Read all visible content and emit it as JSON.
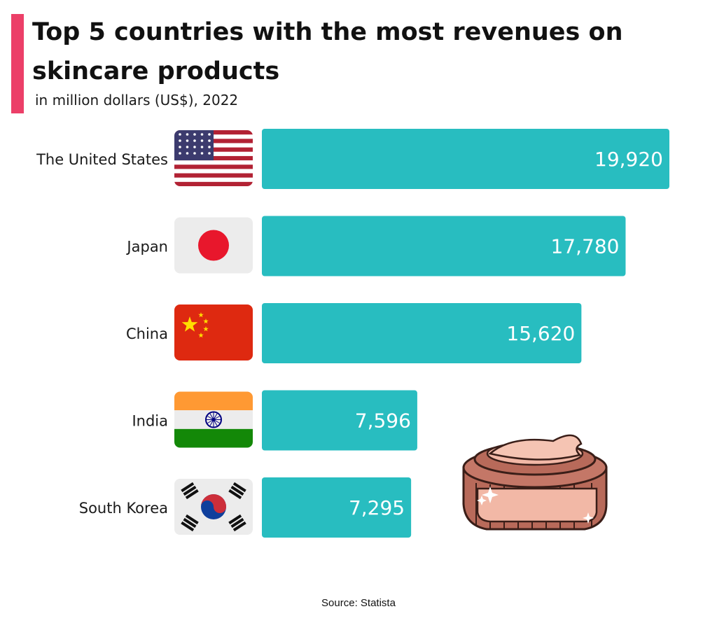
{
  "title": "Top 5 countries with the most revenues on skincare products",
  "subtitle": "in million dollars (US$), 2022",
  "source": "Source: Statista",
  "colors": {
    "accent": "#ec3f68",
    "bar": "#28bdc0",
    "jar": "#b86a5a",
    "cream": "#f2b8a6"
  },
  "chart_data": {
    "type": "bar",
    "orientation": "horizontal",
    "categories": [
      "The United States",
      "Japan",
      "China",
      "India",
      "South Korea"
    ],
    "values": [
      19920,
      17780,
      15620,
      7596,
      7295
    ],
    "value_labels": [
      "19,920",
      "17,780",
      "15,620",
      "7,596",
      "7,295"
    ],
    "flags": [
      "us-flag-icon",
      "japan-flag-icon",
      "china-flag-icon",
      "india-flag-icon",
      "south-korea-flag-icon"
    ],
    "title": "Top 5 countries with the most revenues on skincare products",
    "subtitle": "in million dollars (US$), 2022",
    "xlabel": "",
    "ylabel": "",
    "grid": false,
    "legend": "none"
  },
  "decoration": {
    "icon": "cream-jar-icon"
  }
}
